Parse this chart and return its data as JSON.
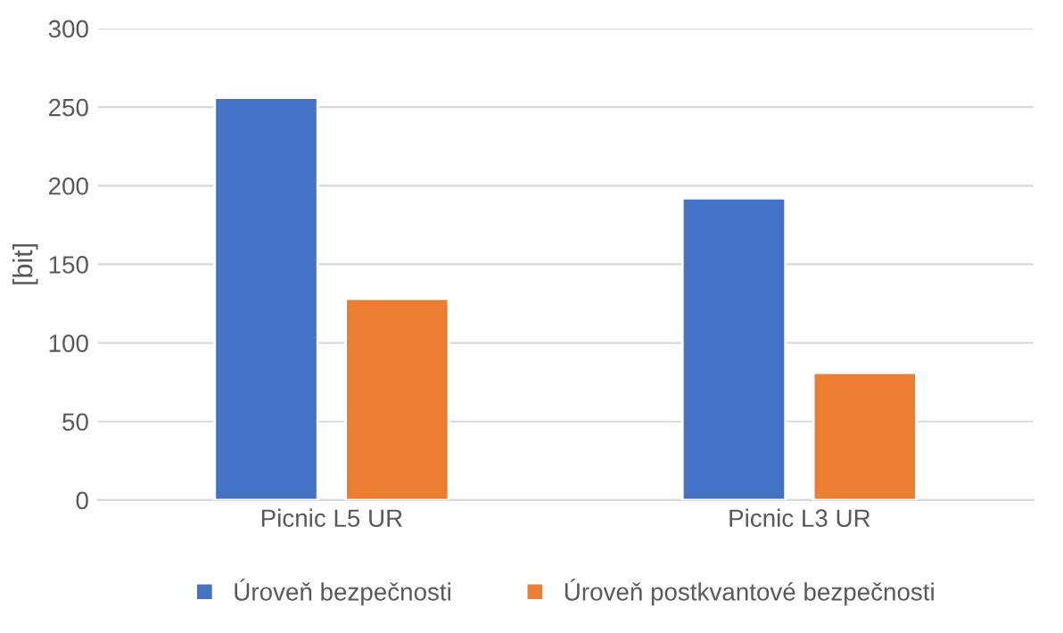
{
  "chart_data": {
    "type": "bar",
    "ylabel": "[bit]",
    "categories": [
      "Picnic L5 UR",
      "Picnic L3 UR"
    ],
    "series": [
      {
        "name": "Úroveň bezpečnosti",
        "color": "#4472c4",
        "values": [
          256,
          192
        ]
      },
      {
        "name": "Úroveň postkvantové bezpečnosti",
        "color": "#ed7d31",
        "values": [
          128,
          81
        ]
      }
    ],
    "ylim": [
      0,
      300
    ],
    "yticks": [
      0,
      50,
      100,
      150,
      200,
      250,
      300
    ],
    "grid": "y",
    "legend": "bottom"
  }
}
